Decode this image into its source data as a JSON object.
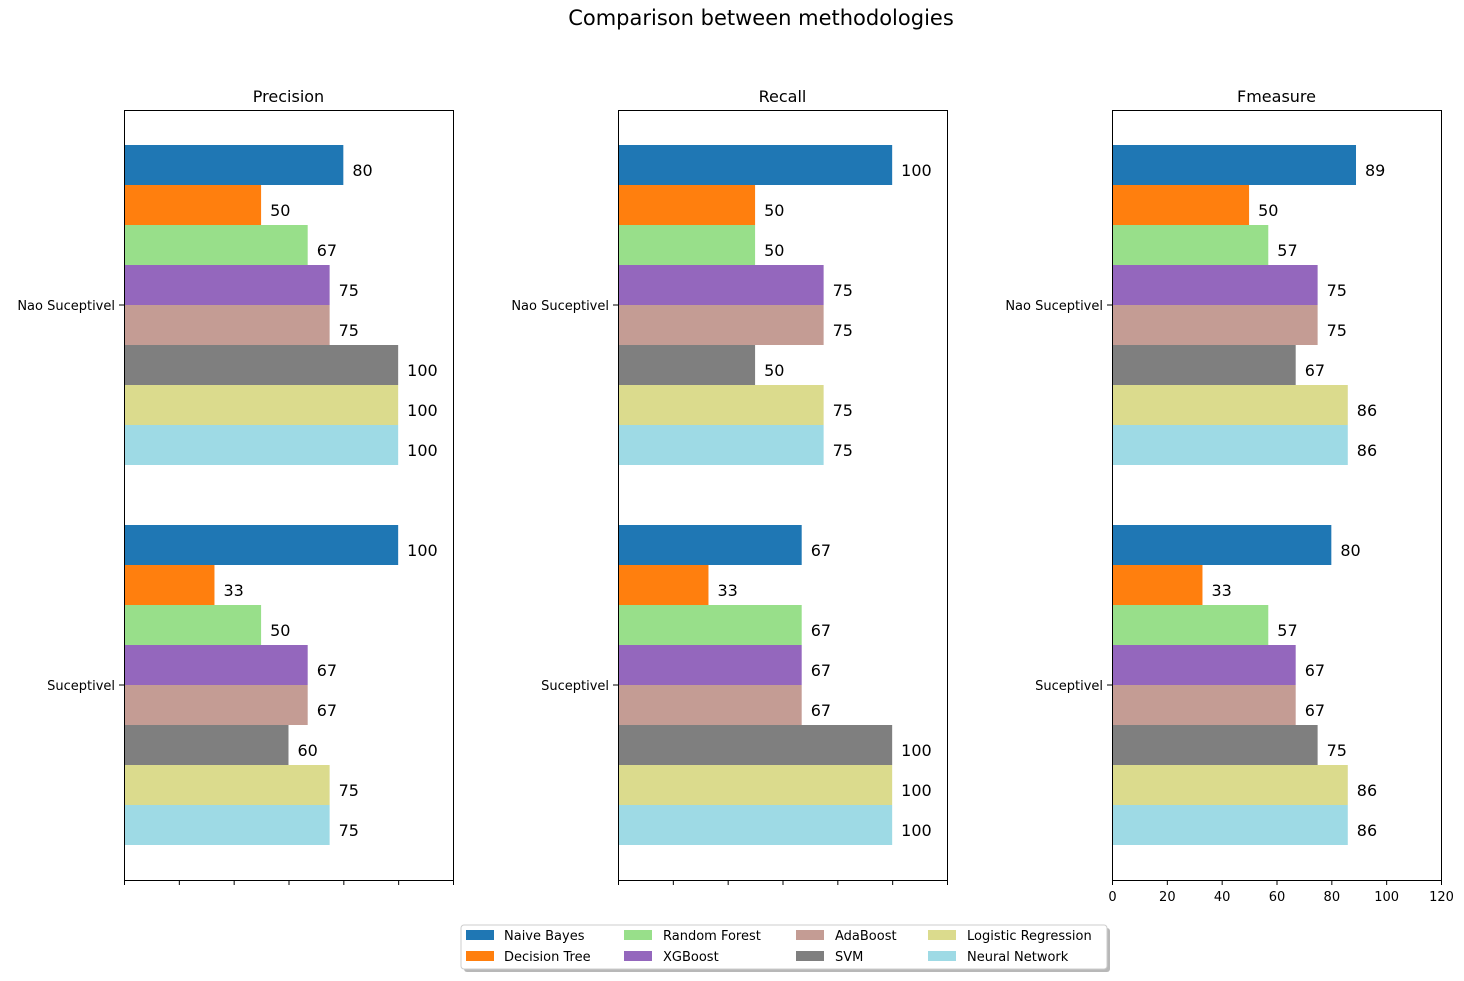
{
  "chart_data": {
    "type": "bar",
    "orientation": "horizontal",
    "title": "Comparison between methodologies",
    "categories": [
      "Nao Suceptivel",
      "Suceptivel"
    ],
    "series_names": [
      "Naive Bayes",
      "Decision Tree",
      "Random Forest",
      "XGBoost",
      "AdaBoost",
      "SVM",
      "Logistic Regression",
      "Neural Network"
    ],
    "colors": [
      "#1f77b4",
      "#ff7f0e",
      "#98df8a",
      "#9467bd",
      "#c49c94",
      "#7f7f7f",
      "#dbdb8d",
      "#9edae5"
    ],
    "xlim": [
      0,
      120
    ],
    "xticks": [
      "0",
      "20",
      "40",
      "60",
      "80",
      "100",
      "120"
    ],
    "legend_position": "bottom-center",
    "grid": false,
    "panels": [
      {
        "title": "Precision",
        "values": {
          "Nao Suceptivel": [
            80,
            50,
            67,
            75,
            75,
            100,
            100,
            100
          ],
          "Suceptivel": [
            100,
            33,
            50,
            67,
            67,
            60,
            75,
            75
          ]
        },
        "labels": {
          "Nao Suceptivel": [
            "80",
            "50",
            "67",
            "75",
            "75",
            "100",
            "100",
            "100"
          ],
          "Suceptivel": [
            "100",
            "33",
            "50",
            "67",
            "67",
            "60",
            "75",
            "75"
          ]
        }
      },
      {
        "title": "Recall",
        "values": {
          "Nao Suceptivel": [
            100,
            50,
            50,
            75,
            75,
            50,
            75,
            75
          ],
          "Suceptivel": [
            67,
            33,
            67,
            67,
            67,
            100,
            100,
            100
          ]
        },
        "labels": {
          "Nao Suceptivel": [
            "100",
            "50",
            "50",
            "75",
            "75",
            "50",
            "75",
            "75"
          ],
          "Suceptivel": [
            "67",
            "33",
            "67",
            "67",
            "67",
            "100",
            "100",
            "100"
          ]
        }
      },
      {
        "title": "Fmeasure",
        "values": {
          "Nao Suceptivel": [
            89,
            50,
            57,
            75,
            75,
            67,
            86,
            86
          ],
          "Suceptivel": [
            80,
            33,
            57,
            67,
            67,
            75,
            86,
            86
          ]
        },
        "labels": {
          "Nao Suceptivel": [
            "89",
            "50",
            "57",
            "75",
            "75",
            "67",
            "86",
            "86"
          ],
          "Suceptivel": [
            "80",
            "33",
            "57",
            "67",
            "67",
            "75",
            "86",
            "86"
          ]
        }
      }
    ]
  }
}
